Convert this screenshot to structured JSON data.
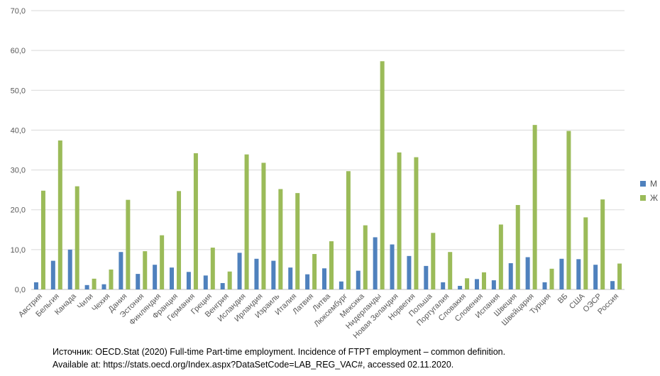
{
  "chart_data": {
    "type": "bar",
    "title": "",
    "xlabel": "",
    "ylabel": "",
    "ylim": [
      0,
      70
    ],
    "yticks": [
      "0,0",
      "10,0",
      "20,0",
      "30,0",
      "40,0",
      "50,0",
      "60,0",
      "70,0"
    ],
    "grid": true,
    "legend_position": "right",
    "categories": [
      "Австрия",
      "Бельгия",
      "Канада",
      "Чили",
      "Чехия",
      "Дания",
      "Эстония",
      "Финляндия",
      "Франция",
      "Германия",
      "Греция",
      "Венгрия",
      "Исландия",
      "Ирландия",
      "Израиль",
      "Италия",
      "Латвия",
      "Литва",
      "Люксембург",
      "Мексика",
      "Нидерланды",
      "Новая Зеландия",
      "Норвегия",
      "Польша",
      "Португалия",
      "Словакия",
      "Словения",
      "Испания",
      "Швеция",
      "Швейцария",
      "Турция",
      "ВБ",
      "США",
      "ОЭСР",
      "Россия"
    ],
    "series": [
      {
        "name": "М",
        "color": "#4f81bd",
        "values": [
          1.8,
          7.2,
          10.0,
          1.1,
          1.3,
          9.4,
          3.9,
          6.2,
          5.5,
          4.4,
          3.5,
          1.6,
          9.2,
          7.7,
          7.2,
          5.5,
          3.8,
          5.3,
          2.0,
          4.7,
          13.1,
          11.3,
          8.4,
          5.9,
          1.8,
          0.9,
          2.6,
          2.3,
          6.6,
          8.1,
          1.8,
          7.7,
          7.6,
          6.2,
          2.1
        ]
      },
      {
        "name": "Ж",
        "color": "#9bbb59",
        "values": [
          24.8,
          37.4,
          25.9,
          2.7,
          5.0,
          22.5,
          9.6,
          13.6,
          24.7,
          34.2,
          10.5,
          4.5,
          33.9,
          31.8,
          25.2,
          24.2,
          8.9,
          12.1,
          29.7,
          16.1,
          57.3,
          34.4,
          33.2,
          14.2,
          9.4,
          2.8,
          4.3,
          16.3,
          21.2,
          41.3,
          5.2,
          39.8,
          18.1,
          22.6,
          6.5
        ]
      }
    ]
  },
  "source": {
    "line1": "Источник: OECD.Stat (2020) Full-time Part-time employment. Incidence of FTPT employment – common definition.",
    "line2": "Available at: https://stats.oecd.org/Index.aspx?DataSetCode=LAB_REG_VAC#, accessed 02.11.2020."
  }
}
